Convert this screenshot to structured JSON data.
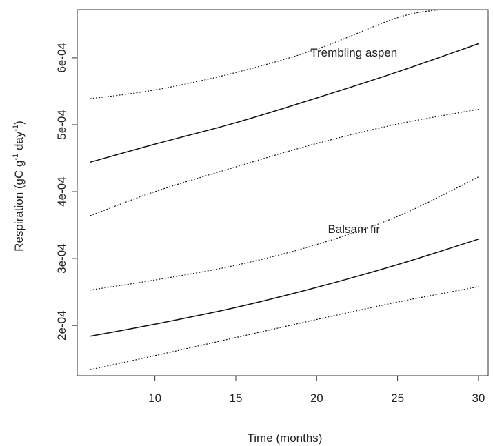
{
  "chart_data": {
    "type": "line",
    "title": "",
    "xlabel": "Time (months)",
    "ylabel_main": "Respiration (gC g",
    "ylabel_sup1": "-1",
    "ylabel_mid": " day",
    "ylabel_sup2": "-1",
    "ylabel_end": ")",
    "xlim": [
      5.2,
      30.6
    ],
    "ylim": [
      0.000125,
      0.000672
    ],
    "x_ticks": [
      10,
      15,
      20,
      25,
      30
    ],
    "x_tick_labels": [
      "10",
      "15",
      "20",
      "25",
      "30"
    ],
    "y_ticks": [
      0.0002,
      0.0003,
      0.0004,
      0.0005,
      0.0006
    ],
    "y_tick_labels": [
      "2e-04",
      "3e-04",
      "4e-04",
      "5e-04",
      "6e-04"
    ],
    "grid": false,
    "annotations": [
      {
        "text": "Trembling aspen",
        "x": 22.3,
        "y": 0.000602
      },
      {
        "text": "Balsam fir",
        "x": 22.3,
        "y": 0.000338
      }
    ],
    "series": [
      {
        "style": "dotted",
        "x": [
          6,
          10,
          15,
          20,
          25,
          27.6
        ],
        "y": [
          0.000539,
          0.000552,
          0.000578,
          0.000613,
          0.00066,
          0.000672
        ]
      },
      {
        "style": "solid",
        "x": [
          6,
          10,
          15,
          20,
          25,
          30
        ],
        "y": [
          0.000444,
          0.000471,
          0.000503,
          0.00054,
          0.000579,
          0.000621
        ]
      },
      {
        "style": "dotted",
        "x": [
          6,
          10,
          15,
          20,
          25,
          30
        ],
        "y": [
          0.000364,
          0.0004,
          0.000437,
          0.000472,
          0.000501,
          0.000523
        ]
      },
      {
        "style": "dotted",
        "x": [
          6,
          10,
          15,
          20,
          25,
          30
        ],
        "y": [
          0.000253,
          0.000268,
          0.00029,
          0.000321,
          0.000363,
          0.000422
        ]
      },
      {
        "style": "solid",
        "x": [
          6,
          10,
          15,
          20,
          25,
          30
        ],
        "y": [
          0.000184,
          0.000202,
          0.000227,
          0.000257,
          0.000291,
          0.000329
        ]
      },
      {
        "style": "dotted",
        "x": [
          6,
          10,
          15,
          20,
          25,
          30
        ],
        "y": [
          0.000134,
          0.000155,
          0.000182,
          0.000209,
          0.000235,
          0.000258
        ]
      }
    ]
  }
}
